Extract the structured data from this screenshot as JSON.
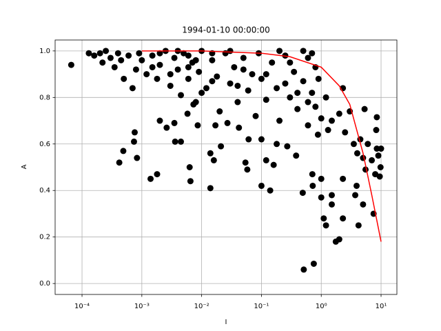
{
  "chart_data": {
    "type": "scatter",
    "title": "1994-01-10 00:00:00",
    "x_label": "I",
    "y_label": "A",
    "xscale": "log",
    "grid": true,
    "xlim": [
      3.55e-05,
      18.4
    ],
    "ylim": [
      -0.047,
      1.047
    ],
    "xticks": [
      {
        "value": 0.0001,
        "label": "10⁻⁴"
      },
      {
        "value": 0.001,
        "label": "10⁻³"
      },
      {
        "value": 0.01,
        "label": "10⁻²"
      },
      {
        "value": 0.1,
        "label": "10⁻¹"
      },
      {
        "value": 1,
        "label": "10⁰"
      },
      {
        "value": 10,
        "label": "10¹"
      }
    ],
    "yticks": [
      {
        "value": 0,
        "label": "0.0"
      },
      0.2,
      0.4,
      0.6,
      0.8,
      {
        "value": 1,
        "label": "1.0"
      }
    ],
    "series": [
      {
        "type": "scatter",
        "color": "#000000",
        "x": [
          6.6e-05,
          0.00042,
          0.00049,
          0.00076,
          0.00074,
          0.00083,
          0.0014,
          0.0018,
          0.0063,
          0.0065,
          0.014,
          0.014,
          0.016,
          0.021,
          0.054,
          0.058,
          0.1,
          0.14,
          0.16,
          0.12,
          0.51,
          0.75,
          0.49,
          0.71,
          0.72,
          1.0,
          1.0,
          1.1,
          1.2,
          1.5,
          1.5,
          1.75,
          2.0,
          2.3,
          2.3,
          3.9,
          4.2,
          5.0,
          3.7,
          8.5,
          9.8,
          9.5,
          7.5,
          8.3,
          8.5,
          2.3,
          5.3,
          0.002,
          0.0026,
          0.0035,
          0.0036,
          0.0045,
          0.0058,
          0.0073,
          0.0086,
          0.017,
          0.027,
          0.042,
          0.061,
          0.1,
          0.18,
          0.27,
          0.38,
          0.88,
          1.3,
          0.00013,
          0.00016,
          0.0002,
          0.00022,
          0.00025,
          0.0003,
          0.00035,
          0.0004,
          0.00045,
          0.0005,
          0.0006,
          0.0007,
          0.0008,
          0.0009,
          0.001,
          0.0012,
          0.0015,
          0.0018,
          0.002,
          0.0025,
          0.003,
          0.0035,
          0.004,
          0.0045,
          0.005,
          0.006,
          0.007,
          0.008,
          0.009,
          0.01,
          0.012,
          0.015,
          0.018,
          0.02,
          0.025,
          0.03,
          0.035,
          0.04,
          0.05,
          0.06,
          0.07,
          0.08,
          0.09,
          0.1,
          0.12,
          0.15,
          0.18,
          0.2,
          0.25,
          0.3,
          0.35,
          0.4,
          0.5,
          0.6,
          0.7,
          0.8,
          1.0,
          1.2,
          1.5,
          2,
          2.5,
          3,
          3.5,
          4,
          4.5,
          5,
          5.5,
          6,
          7,
          8,
          9,
          10,
          0.002,
          0.004,
          0.006,
          0.008,
          0.03,
          0.05,
          0.2,
          0.3,
          0.5,
          0.6,
          0.0015,
          0.003,
          0.015,
          0.04,
          0.12,
          0.25,
          0.4,
          0.6,
          0.8,
          0.01,
          0.7,
          0.9,
          0.015,
          0.006
        ],
        "values": [
          0.94,
          0.52,
          0.57,
          0.65,
          0.61,
          0.54,
          0.45,
          0.47,
          0.5,
          0.44,
          0.41,
          0.56,
          0.53,
          0.59,
          0.52,
          0.49,
          0.42,
          0.4,
          0.51,
          0.53,
          0.06,
          0.085,
          0.39,
          0.47,
          0.42,
          0.37,
          0.45,
          0.28,
          0.25,
          0.34,
          0.38,
          0.18,
          0.19,
          0.28,
          0.45,
          0.42,
          0.25,
          0.34,
          0.38,
          0.58,
          0.5,
          0.46,
          0.3,
          0.66,
          0.715,
          0.84,
          0.75,
          0.7,
          0.67,
          0.69,
          0.61,
          0.61,
          0.73,
          0.77,
          0.68,
          0.68,
          0.69,
          0.67,
          0.62,
          0.62,
          0.6,
          0.59,
          0.55,
          0.64,
          0.66,
          0.99,
          0.98,
          0.99,
          0.95,
          1.0,
          0.97,
          0.93,
          0.99,
          0.96,
          0.88,
          0.98,
          0.84,
          0.92,
          0.99,
          0.96,
          0.9,
          0.98,
          0.88,
          0.94,
          1.0,
          0.85,
          0.97,
          0.92,
          0.81,
          0.99,
          0.88,
          0.95,
          0.78,
          0.91,
          1.0,
          0.84,
          0.96,
          0.89,
          0.74,
          0.99,
          0.86,
          0.93,
          0.78,
          0.97,
          0.83,
          0.9,
          0.72,
          0.99,
          0.88,
          0.79,
          0.95,
          0.84,
          0.7,
          0.98,
          0.8,
          0.91,
          0.75,
          0.87,
          0.68,
          0.82,
          0.93,
          0.71,
          0.8,
          0.7,
          0.73,
          0.65,
          0.74,
          0.6,
          0.56,
          0.62,
          0.54,
          0.49,
          0.6,
          0.53,
          0.47,
          0.55,
          0.58,
          0.99,
          1.0,
          0.98,
          0.96,
          1.0,
          0.92,
          1.0,
          0.95,
          1.0,
          0.97,
          0.93,
          0.9,
          0.87,
          0.85,
          0.9,
          0.86,
          0.82,
          0.78,
          0.76,
          0.82,
          0.99,
          0.88,
          0.99,
          0.93
        ]
      },
      {
        "type": "line",
        "color": "#ff0000",
        "x": [
          0.001,
          0.01,
          0.1,
          0.3,
          1,
          2,
          3,
          5,
          7,
          10
        ],
        "values": [
          1.0,
          1.0,
          0.99,
          0.975,
          0.93,
          0.85,
          0.77,
          0.56,
          0.38,
          0.18
        ]
      }
    ]
  }
}
